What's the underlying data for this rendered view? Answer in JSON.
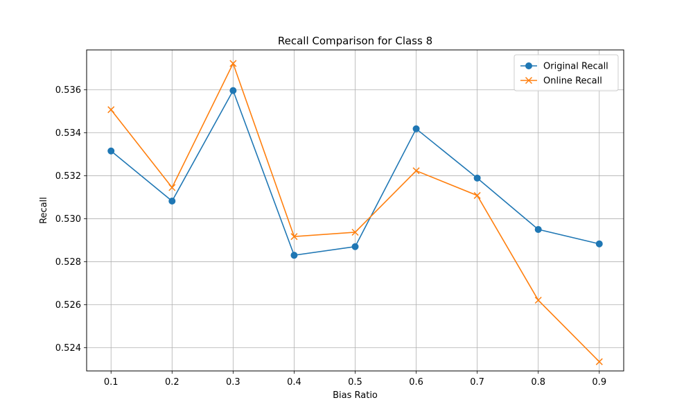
{
  "chart_data": {
    "type": "line",
    "title": "Recall Comparison for Class 8",
    "xlabel": "Bias Ratio",
    "ylabel": "Recall",
    "x": [
      0.1,
      0.2,
      0.3,
      0.4,
      0.5,
      0.6,
      0.7,
      0.8,
      0.9
    ],
    "x_ticks": [
      "0.1",
      "0.2",
      "0.3",
      "0.4",
      "0.5",
      "0.6",
      "0.7",
      "0.8",
      "0.9"
    ],
    "y_ticks": [
      "0.524",
      "0.526",
      "0.528",
      "0.530",
      "0.532",
      "0.534",
      "0.536"
    ],
    "xlim": [
      0.06,
      0.94
    ],
    "ylim": [
      0.52292,
      0.53785
    ],
    "grid": true,
    "legend_position": "top-right",
    "series": [
      {
        "name": "Original Recall",
        "color": "#1f77b4",
        "marker": "circle",
        "values": [
          0.53315,
          0.53082,
          0.53596,
          0.5283,
          0.5287,
          0.53418,
          0.53189,
          0.5295,
          0.52883
        ]
      },
      {
        "name": "Online Recall",
        "color": "#ff7f0e",
        "marker": "x",
        "values": [
          0.53507,
          0.53145,
          0.53722,
          0.52917,
          0.52937,
          0.53223,
          0.53108,
          0.52621,
          0.52335
        ]
      }
    ]
  }
}
